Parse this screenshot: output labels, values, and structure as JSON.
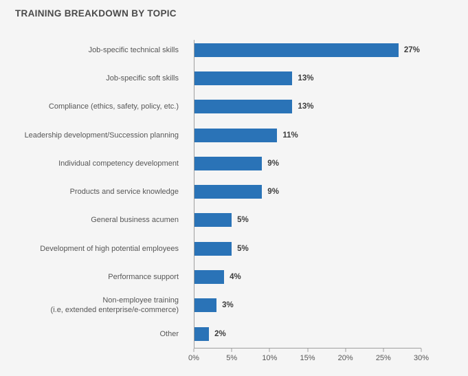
{
  "title": "TRAINING BREAKDOWN BY TOPIC",
  "colors": {
    "background": "#f5f5f5",
    "bar": "#2a73b7",
    "axis": "#9e9e9e",
    "category_label": "#565656",
    "value_label": "#3d3d3d",
    "title": "#4a4a4a"
  },
  "chart_data": {
    "type": "bar",
    "orientation": "horizontal",
    "title": "TRAINING BREAKDOWN BY TOPIC",
    "categories": [
      "Job-specific technical skills",
      "Job-specific soft skills",
      "Compliance (ethics, safety, policy, etc.)",
      "Leadership development/Succession planning",
      "Individual competency development",
      "Products and service knowledge",
      "General business acumen",
      "Development of high potential employees",
      "Performance support",
      "Non-employee training\n(i.e, extended enterprise/e-commerce)",
      "Other"
    ],
    "values": [
      27,
      13,
      13,
      11,
      9,
      9,
      5,
      5,
      4,
      3,
      2
    ],
    "value_labels": [
      "27%",
      "13%",
      "13%",
      "11%",
      "9%",
      "9%",
      "5%",
      "5%",
      "4%",
      "3%",
      "2%"
    ],
    "x_ticks": [
      "0%",
      "5%",
      "10%",
      "15%",
      "20%",
      "25%",
      "30%"
    ],
    "xlim": [
      0,
      30
    ],
    "xlabel": "",
    "ylabel": "",
    "grid": false,
    "legend": false,
    "bar_color": "#2a73b7"
  }
}
